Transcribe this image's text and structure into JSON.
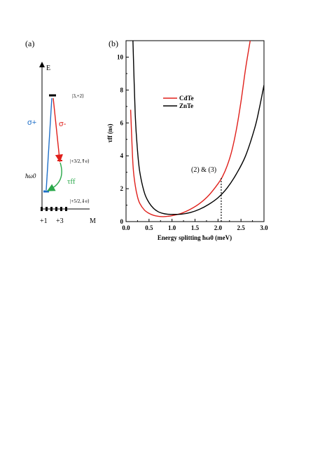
{
  "panel_a": {
    "label": "(a)",
    "axis_y_label": "E",
    "axis_x_label": "M",
    "tick_labels": [
      "+1",
      "+3"
    ],
    "state_top": "|3,+2⟩",
    "state_mid": "|+3/2,⇑e⟩",
    "state_bot": "|+5/2,⇓e⟩",
    "sigma_plus": "σ+",
    "sigma_minus": "σ-",
    "hbar_label": "ħω0",
    "tau_label": "τff",
    "colors": {
      "sigma_plus": "#1f6fc8",
      "sigma_minus": "#e0201b",
      "tau": "#2aa84a"
    }
  },
  "panel_b": {
    "label": "(b)",
    "annotation": "(2) & (3)"
  },
  "chart_data": {
    "type": "line",
    "xlabel": "Energy splitting ħω0 (meV)",
    "ylabel": "τff (ns)",
    "xlim": [
      0.0,
      3.0
    ],
    "ylim": [
      0,
      11
    ],
    "xticks": [
      "0.0",
      "0.5",
      "1.0",
      "1.5",
      "2.0",
      "2.5",
      "3.0"
    ],
    "yticks": [
      "0",
      "2",
      "4",
      "6",
      "8",
      "10"
    ],
    "legend_placement": "top-left",
    "vline_x": 2.07,
    "series": [
      {
        "name": "CdTe",
        "color": "#e0201b",
        "x": [
          0.1,
          0.15,
          0.2,
          0.25,
          0.3,
          0.4,
          0.5,
          0.6,
          0.7,
          0.8,
          0.9,
          1.0,
          1.2,
          1.4,
          1.6,
          1.8,
          2.0,
          2.1,
          2.2,
          2.3,
          2.4,
          2.5,
          2.6,
          2.7
        ],
        "y": [
          6.8,
          3.5,
          2.2,
          1.5,
          1.1,
          0.7,
          0.5,
          0.38,
          0.32,
          0.3,
          0.32,
          0.36,
          0.5,
          0.75,
          1.1,
          1.6,
          2.3,
          2.75,
          3.4,
          4.3,
          5.6,
          7.3,
          9.3,
          11.0
        ]
      },
      {
        "name": "ZnTe",
        "color": "#000000",
        "x": [
          0.15,
          0.2,
          0.25,
          0.3,
          0.4,
          0.5,
          0.6,
          0.7,
          0.8,
          0.9,
          1.0,
          1.2,
          1.4,
          1.6,
          1.8,
          2.0,
          2.2,
          2.4,
          2.6,
          2.8,
          2.9,
          3.0
        ],
        "y": [
          11.0,
          6.5,
          4.3,
          3.0,
          1.75,
          1.15,
          0.8,
          0.6,
          0.5,
          0.45,
          0.44,
          0.45,
          0.55,
          0.75,
          1.05,
          1.45,
          2.05,
          2.9,
          4.0,
          5.7,
          6.9,
          8.3
        ]
      }
    ]
  }
}
